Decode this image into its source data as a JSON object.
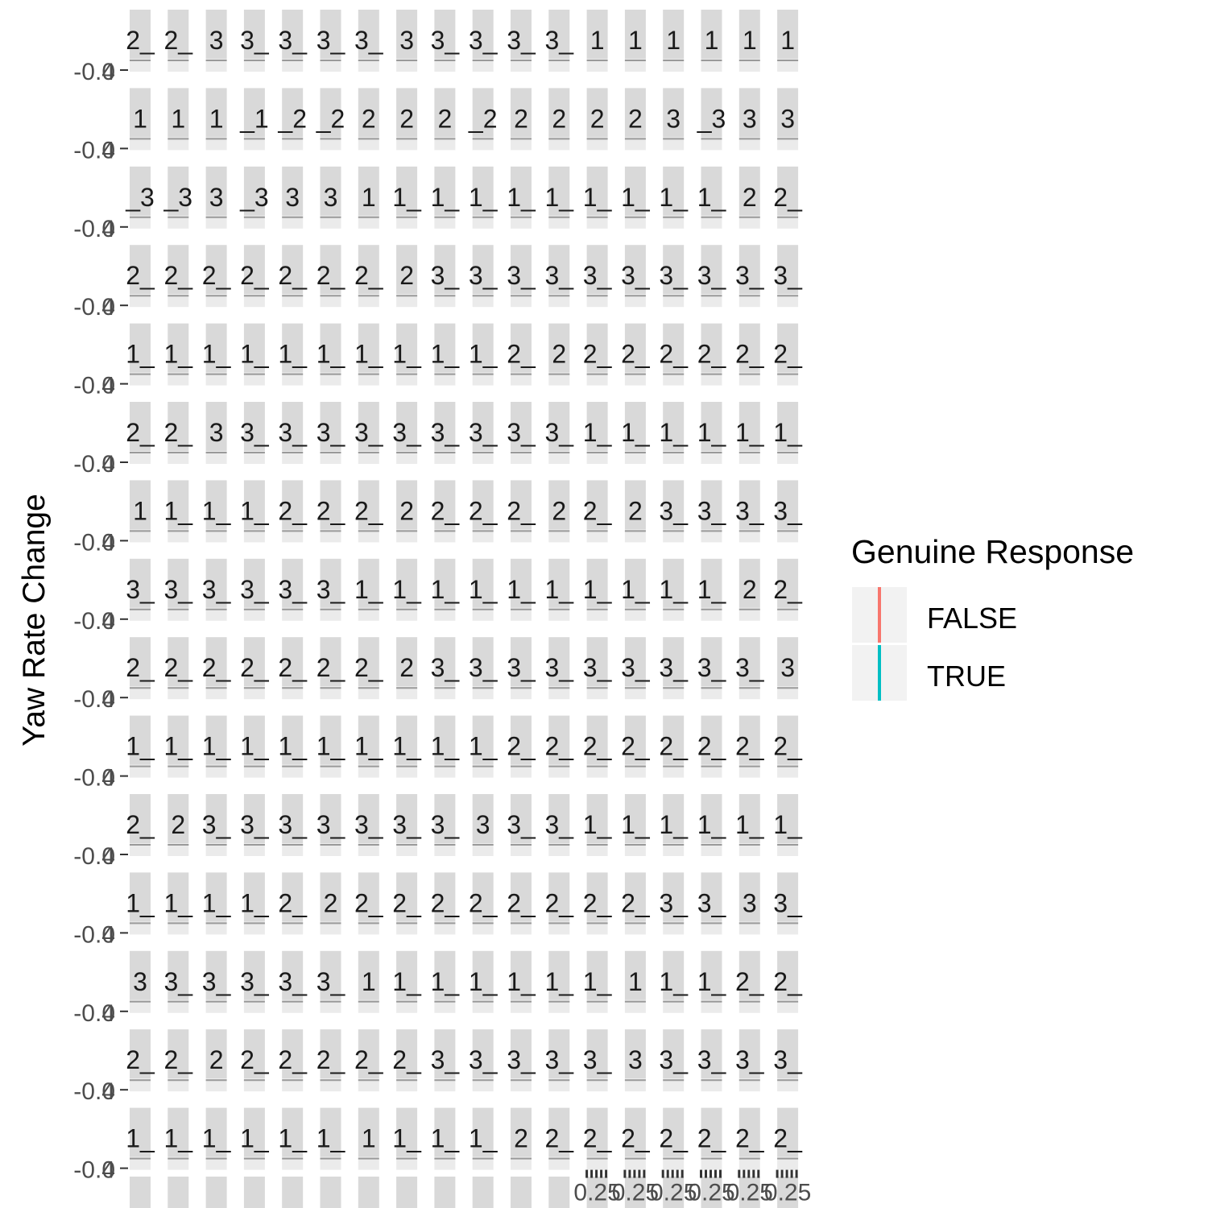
{
  "chart_data": {
    "type": "line",
    "title": "",
    "xlabel": "",
    "ylabel": "Yaw Rate Change",
    "facet_layout": {
      "rows_visible": 15,
      "cols": 18,
      "partial_row_at_bottom": true
    },
    "panel_background": "#ebebeb",
    "strip_background": "#d9d9d9",
    "y_tick_label": "-0.4",
    "y_tick_label_overlap": "0",
    "x_tick_labels_overlapped": "0.25",
    "strip_labels": [
      [
        "2_",
        "2_",
        "3",
        "3_",
        "3_",
        "3_",
        "3_",
        "3",
        "3_",
        "3_",
        "3_",
        "3_",
        "1",
        "1",
        "1",
        "1",
        "1",
        "1"
      ],
      [
        "1",
        "1",
        "1",
        "_1",
        "_2",
        "_2",
        "2",
        "2",
        "2",
        "_2",
        "2",
        "2",
        "2",
        "2",
        "3",
        "_3",
        "3",
        "3"
      ],
      [
        "_3",
        "_3",
        "3",
        "_3",
        "3",
        "3",
        "1",
        "1_",
        "1_",
        "1_",
        "1_",
        "1_",
        "1_",
        "1_",
        "1_",
        "1_",
        "2",
        "2_"
      ],
      [
        "2_",
        "2_",
        "2_",
        "2_",
        "2_",
        "2_",
        "2_",
        "2",
        "3_",
        "3_",
        "3_",
        "3_",
        "3_",
        "3_",
        "3_",
        "3_",
        "3_",
        "3_"
      ],
      [
        "1_",
        "1_",
        "1_",
        "1_",
        "1_",
        "1_",
        "1_",
        "1_",
        "1_",
        "1_",
        "2_",
        "2",
        "2_",
        "2_",
        "2_",
        "2_",
        "2_",
        "2_"
      ],
      [
        "2_",
        "2_",
        "3",
        "3_",
        "3_",
        "3_",
        "3_",
        "3_",
        "3_",
        "3_",
        "3_",
        "3_",
        "1_",
        "1_",
        "1_",
        "1_",
        "1_",
        "1_"
      ],
      [
        "1",
        "1_",
        "1_",
        "1_",
        "2_",
        "2_",
        "2_",
        "2",
        "2_",
        "2_",
        "2_",
        "2",
        "2_",
        "2",
        "3_",
        "3_",
        "3_",
        "3_"
      ],
      [
        "3_",
        "3_",
        "3_",
        "3_",
        "3_",
        "3_",
        "1_",
        "1_",
        "1_",
        "1_",
        "1_",
        "1_",
        "1_",
        "1_",
        "1_",
        "1_",
        "2",
        "2_"
      ],
      [
        "2_",
        "2_",
        "2_",
        "2_",
        "2_",
        "2_",
        "2_",
        "2",
        "3_",
        "3_",
        "3_",
        "3_",
        "3_",
        "3_",
        "3_",
        "3_",
        "3_",
        "3"
      ],
      [
        "1_",
        "1_",
        "1_",
        "1_",
        "1_",
        "1_",
        "1_",
        "1_",
        "1_",
        "1_",
        "2_",
        "2_",
        "2_",
        "2_",
        "2_",
        "2_",
        "2_",
        "2_"
      ],
      [
        "2_",
        "2",
        "3_",
        "3_",
        "3_",
        "3_",
        "3_",
        "3_",
        "3_",
        "3",
        "3_",
        "3_",
        "1_",
        "1_",
        "1_",
        "1_",
        "1_",
        "1_"
      ],
      [
        "1_",
        "1_",
        "1_",
        "1_",
        "2_",
        "2",
        "2_",
        "2_",
        "2_",
        "2_",
        "2_",
        "2_",
        "2_",
        "2_",
        "3_",
        "3_",
        "3",
        "3_"
      ],
      [
        "3",
        "3_",
        "3_",
        "3_",
        "3_",
        "3_",
        "1",
        "1_",
        "1_",
        "1_",
        "1_",
        "1_",
        "1_",
        "1",
        "1_",
        "1_",
        "2_",
        "2_"
      ],
      [
        "2_",
        "2_",
        "2",
        "2_",
        "2_",
        "2_",
        "2_",
        "2_",
        "3_",
        "3_",
        "3_",
        "3_",
        "3_",
        "3",
        "3_",
        "3_",
        "3_",
        "3_"
      ],
      [
        "1_",
        "1_",
        "1_",
        "1_",
        "1_",
        "1_",
        "1",
        "1_",
        "1_",
        "1_",
        "2",
        "2_",
        "2_",
        "2_",
        "2_",
        "2_",
        "2_",
        "2_"
      ]
    ],
    "legend": {
      "title": "Genuine Response",
      "position": "right",
      "items": [
        {
          "label": "FALSE",
          "color": "#F8766D"
        },
        {
          "label": "TRUE",
          "color": "#00BFC4"
        }
      ]
    },
    "series": [
      {
        "name": "FALSE",
        "color": "#F8766D",
        "values": []
      },
      {
        "name": "TRUE",
        "color": "#00BFC4",
        "values": []
      }
    ]
  }
}
